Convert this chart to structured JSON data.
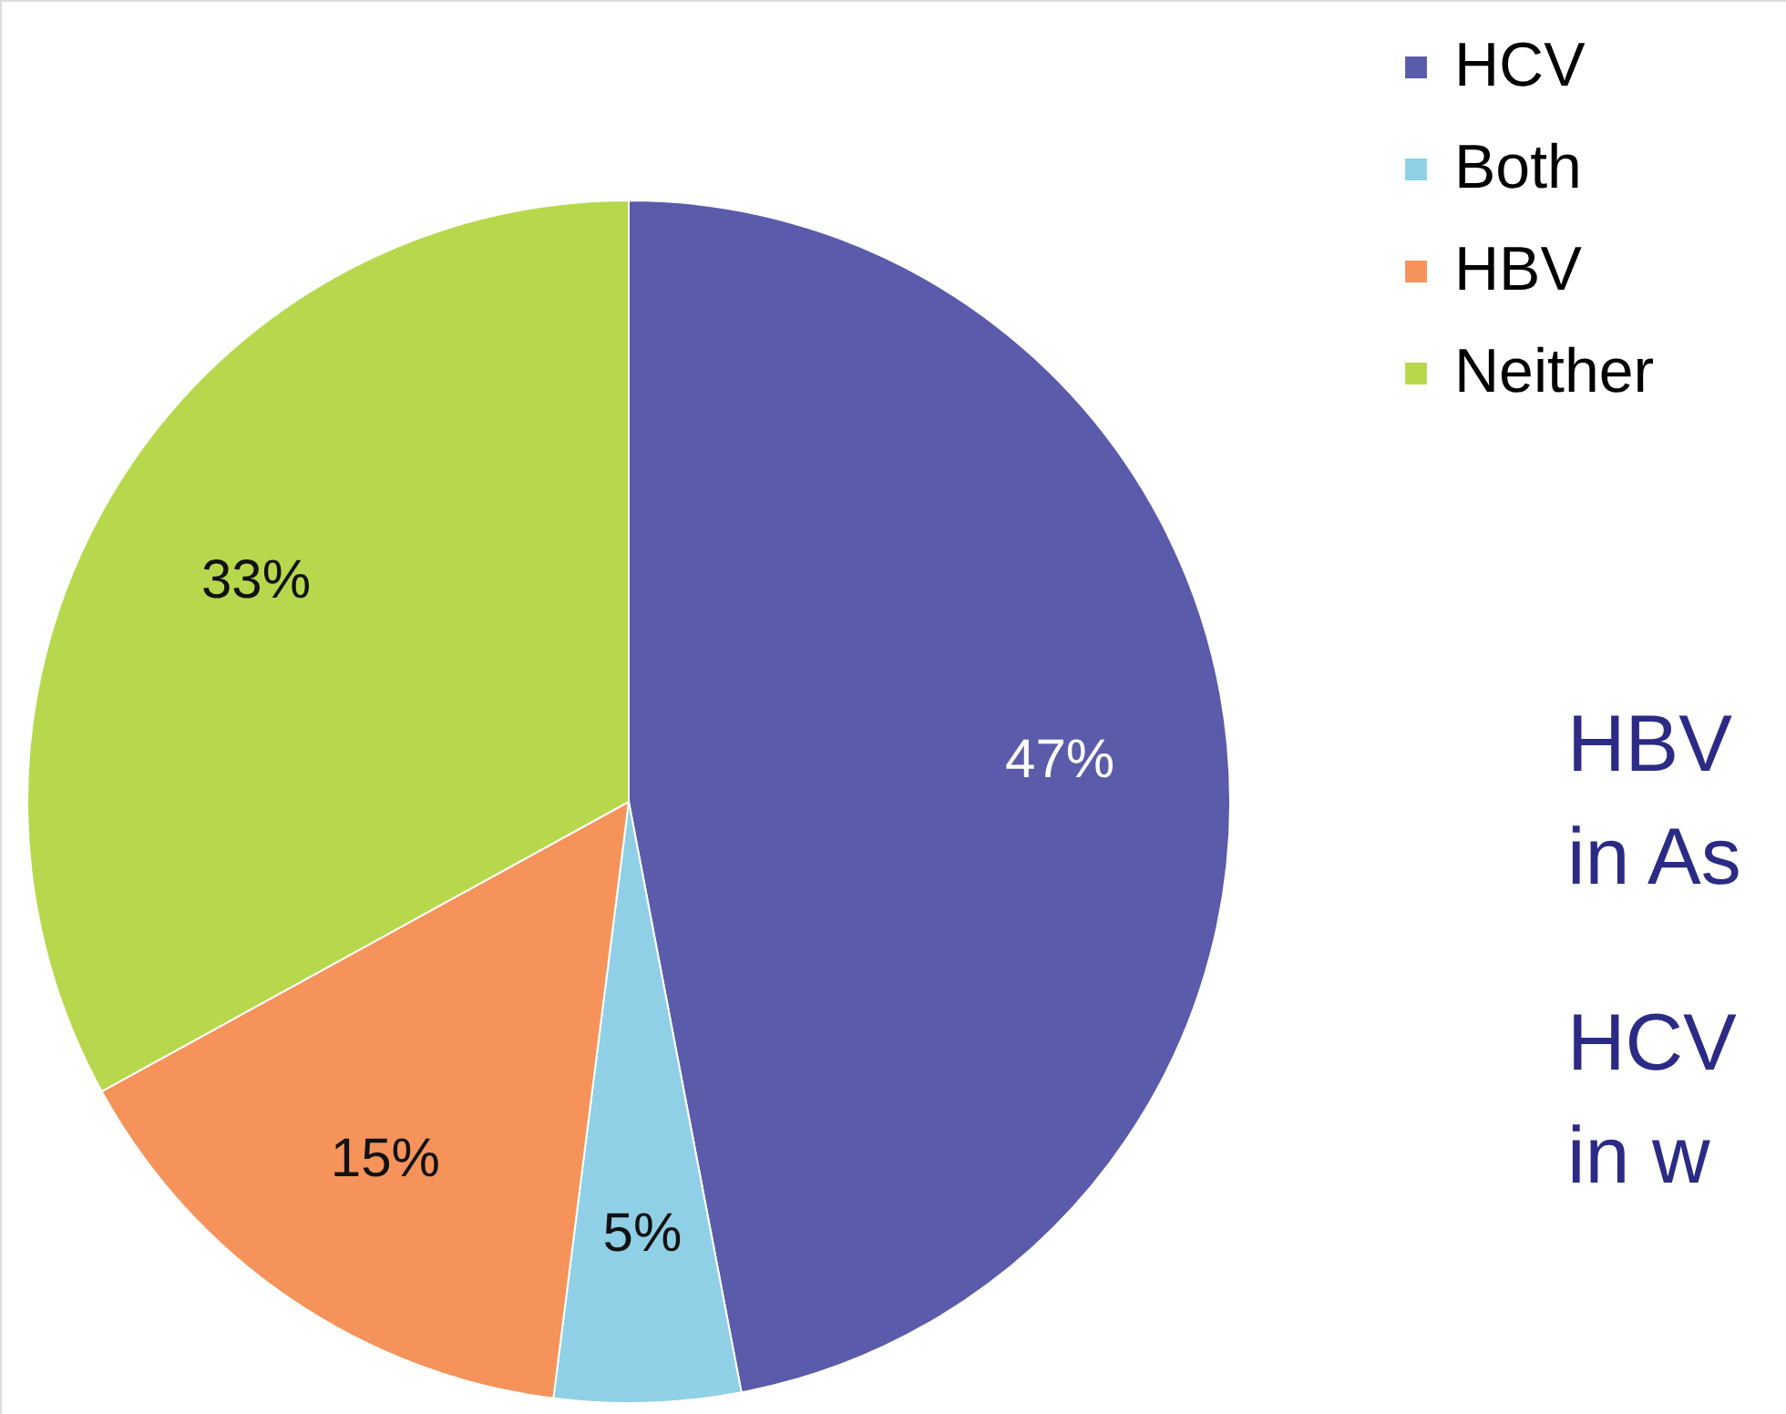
{
  "chart_data": {
    "type": "pie",
    "categories": [
      "HCV",
      "Both",
      "HBV",
      "Neither"
    ],
    "values": [
      47,
      5,
      15,
      33
    ],
    "colors": [
      "#5b5bab",
      "#8fd0e6",
      "#f5935a",
      "#b7d84c"
    ],
    "value_labels": [
      "47%",
      "5%",
      "15%",
      "33%"
    ],
    "legend": "top right",
    "annotations": [
      "HBV",
      "in As",
      "HCV",
      "in w"
    ]
  }
}
